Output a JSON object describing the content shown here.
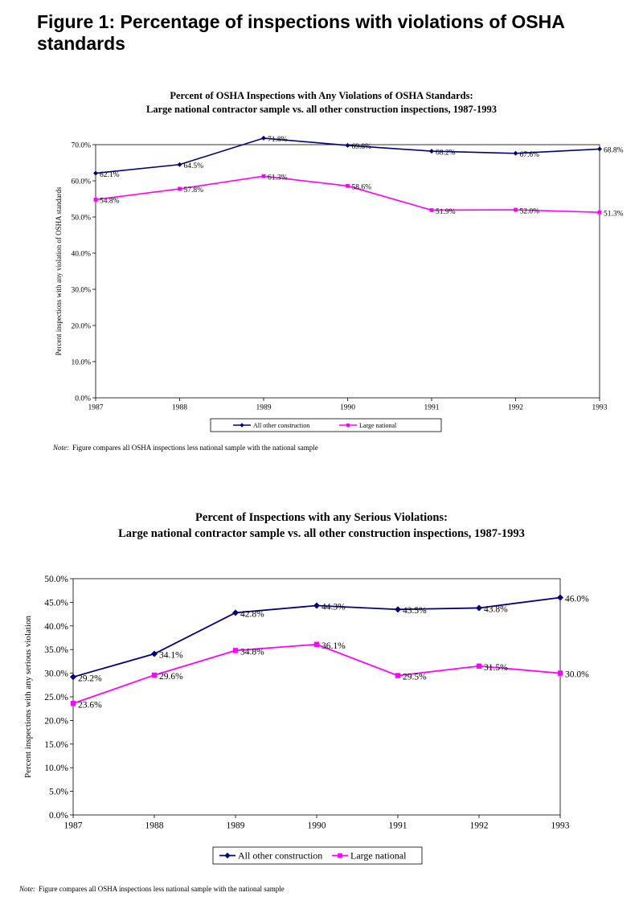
{
  "page": {
    "title": "Figure 1: Percentage of inspections with violations of OSHA standards"
  },
  "chart_data": [
    {
      "type": "line",
      "title": "Percent of OSHA Inspections with Any Violations of OSHA Standards:",
      "subtitle": "Large national contractor sample vs. all other construction inspections, 1987-1993",
      "xlabel": "",
      "ylabel": "Percent inspections with any violation of OSHA standards",
      "x": [
        "1987",
        "1988",
        "1989",
        "1990",
        "1991",
        "1992",
        "1993"
      ],
      "ylim": [
        0,
        70
      ],
      "ytick_step": 10,
      "ytick_labels": [
        "0.0%",
        "10.0%",
        "20.0%",
        "30.0%",
        "40.0%",
        "50.0%",
        "60.0%",
        "70.0%"
      ],
      "series": [
        {
          "name": "All other construction",
          "color": "#000080",
          "marker": "diamond",
          "values": [
            62.1,
            64.5,
            71.8,
            69.8,
            68.2,
            67.6,
            68.8
          ],
          "labels": [
            "62.1%",
            "64.5%",
            "71.8%",
            "69.8%",
            "68.2%",
            "67.6%",
            "68.8%"
          ]
        },
        {
          "name": "Large national",
          "color": "#ff00ff",
          "marker": "square",
          "values": [
            54.8,
            57.8,
            61.3,
            58.6,
            51.9,
            52.0,
            51.3
          ],
          "labels": [
            "54.8%",
            "57.8%",
            "61.3%",
            "58.6%",
            "51.9%",
            "52.0%",
            "51.3%"
          ]
        }
      ],
      "grid": false,
      "legend": "bottom",
      "note_prefix": "Note:",
      "note": "Figure compares all OSHA inspections less national sample with the national sample"
    },
    {
      "type": "line",
      "title": "Percent of Inspections with any Serious Violations:",
      "subtitle": "Large national contractor sample vs. all other construction inspections, 1987-1993",
      "xlabel": "",
      "ylabel": "Percent inspections with any serious violation",
      "x": [
        "1987",
        "1988",
        "1989",
        "1990",
        "1991",
        "1992",
        "1993"
      ],
      "ylim": [
        0,
        50
      ],
      "ytick_step": 5,
      "ytick_labels": [
        "0.0%",
        "5.0%",
        "10.0%",
        "15.0%",
        "20.0%",
        "25.0%",
        "30.0%",
        "35.0%",
        "40.0%",
        "45.0%",
        "50.0%"
      ],
      "series": [
        {
          "name": "All other construction",
          "color": "#000080",
          "marker": "diamond",
          "values": [
            29.2,
            34.1,
            42.8,
            44.3,
            43.5,
            43.8,
            46.0
          ],
          "labels": [
            "29.2%",
            "34.1%",
            "42.8%",
            "44.3%",
            "43.5%",
            "43.8%",
            "46.0%"
          ]
        },
        {
          "name": "Large national",
          "color": "#ff00ff",
          "marker": "square",
          "values": [
            23.6,
            29.6,
            34.8,
            36.1,
            29.5,
            31.5,
            30.0
          ],
          "labels": [
            "23.6%",
            "29.6%",
            "34.8%",
            "36.1%",
            "29.5%",
            "31.5%",
            "30.0%"
          ]
        }
      ],
      "grid": false,
      "legend": "bottom",
      "note_prefix": "Note:",
      "note": "Figure compares all OSHA inspections less national sample with the national sample"
    }
  ]
}
